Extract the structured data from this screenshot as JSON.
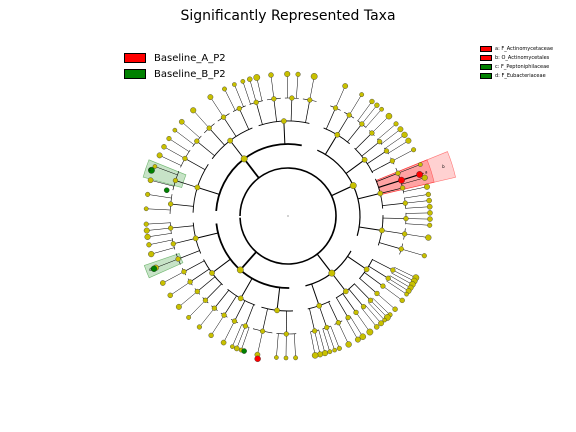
{
  "title": "Significantly Represented Taxa",
  "legend": [
    {
      "label": "Baseline_A_P2",
      "color": "#ff0000"
    },
    {
      "label": "Baseline_B_P2",
      "color": "#008000"
    }
  ],
  "clade_legend": [
    {
      "label": "a: F_Actinomycetaceae",
      "color": "#ff0000"
    },
    {
      "label": "b: O_Actinomycetales",
      "color": "#ff0000"
    },
    {
      "label": "c: F_Peptoniphilaceae",
      "color": "#008000"
    },
    {
      "label": "d: F_Eubacteriaceae",
      "color": "#008000"
    }
  ],
  "highlight_letters": {
    "a": "a",
    "b": "b",
    "c": "c",
    "d": "d"
  },
  "colors": {
    "node": "#c8c000",
    "red": "#ff0000",
    "green": "#008000",
    "line": "#000000"
  }
}
